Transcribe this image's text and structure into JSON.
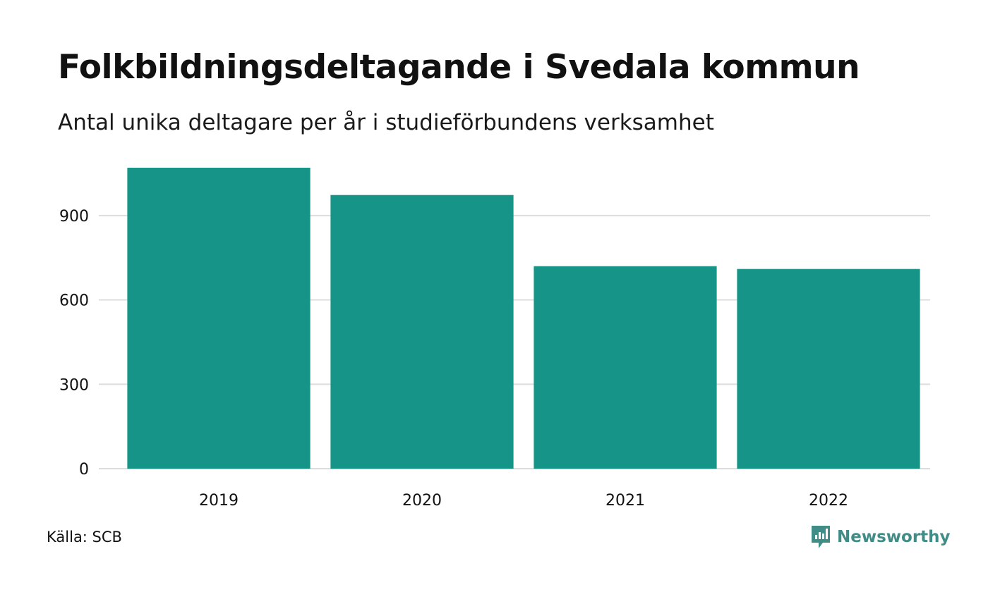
{
  "title": "Folkbildningsdeltagande i Svedala kommun",
  "subtitle": "Antal unika deltagare per år i studieförbundens verksamhet",
  "source": "Källa: SCB",
  "brand": {
    "name": "Newsworthy",
    "icon": "newsworthy-logo-icon",
    "color": "#3f8d86"
  },
  "colors": {
    "bar": "#169487",
    "grid": "#dddddd"
  },
  "chart_data": {
    "type": "bar",
    "categories": [
      "2019",
      "2020",
      "2021",
      "2022"
    ],
    "values": [
      1070,
      973,
      720,
      710
    ],
    "ylim": [
      0,
      1070
    ],
    "yticks": [
      "0",
      "300",
      "600",
      "900"
    ],
    "ytick_values": [
      0,
      300,
      600,
      900
    ],
    "grid": true,
    "legend": "none"
  }
}
